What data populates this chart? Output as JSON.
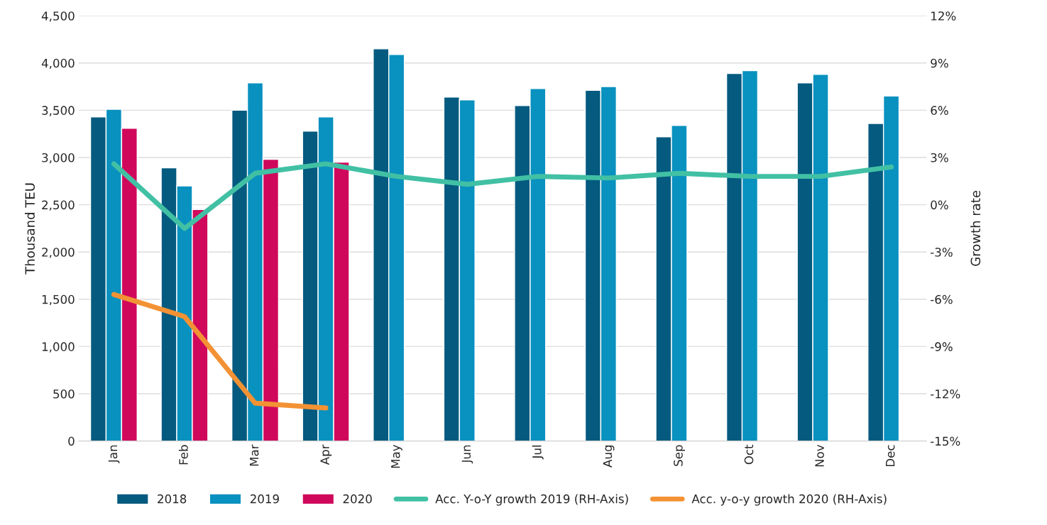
{
  "chart_data": {
    "type": "bar",
    "categories": [
      "Jan",
      "Feb",
      "Mar",
      "Apr",
      "May",
      "Jun",
      "Jul",
      "Aug",
      "Sep",
      "Oct",
      "Nov",
      "Dec"
    ],
    "ylabel": "Thousand TEU",
    "y2label": "Growth rate",
    "ylim": [
      0,
      4500
    ],
    "yticks": [
      0,
      {
        "value": 500,
        "label": "500"
      },
      {
        "value": 1000,
        "label": "1,000"
      },
      {
        "value": 1500,
        "label": "1,500"
      },
      {
        "value": 2000,
        "label": "2,000"
      },
      {
        "value": 2500,
        "label": "2,500"
      },
      {
        "value": 3000,
        "label": "3,000"
      },
      {
        "value": 3500,
        "label": "3,500"
      },
      {
        "value": 4000,
        "label": "4,000"
      },
      {
        "value": 4500,
        "label": "4,500"
      }
    ],
    "y2lim": [
      -15,
      12
    ],
    "y2ticks": [
      {
        "value": -15,
        "label": "-15%"
      },
      {
        "value": -12,
        "label": "-12%"
      },
      {
        "value": -9,
        "label": "-9%"
      },
      {
        "value": -6,
        "label": "-6%"
      },
      {
        "value": -3,
        "label": "-3%"
      },
      {
        "value": 0,
        "label": "0%"
      },
      {
        "value": 3,
        "label": "3%"
      },
      {
        "value": 6,
        "label": "6%"
      },
      {
        "value": 9,
        "label": "9%"
      },
      {
        "value": 12,
        "label": "12%"
      }
    ],
    "grid": "y",
    "legend": "bottom",
    "series": [
      {
        "name": "2018",
        "color": "#045a7f",
        "values": [
          3430,
          2890,
          3500,
          3280,
          4150,
          3640,
          3550,
          3710,
          3220,
          3890,
          3790,
          3360
        ]
      },
      {
        "name": "2019",
        "color": "#0991bf",
        "values": [
          3510,
          2700,
          3790,
          3430,
          4090,
          3610,
          3730,
          3750,
          3340,
          3920,
          3880,
          3650
        ]
      },
      {
        "name": "2020",
        "color": "#d0085c",
        "values": [
          3310,
          2450,
          2980,
          2950,
          null,
          null,
          null,
          null,
          null,
          null,
          null,
          null
        ]
      },
      {
        "name": "Acc. Y-o-Y growth 2019 (RH-Axis)",
        "type": "line",
        "axis": "y2",
        "color": "#41c0a4",
        "values": [
          2.6,
          -1.5,
          2.0,
          2.6,
          1.8,
          1.3,
          1.8,
          1.7,
          2.0,
          1.8,
          1.8,
          2.4
        ]
      },
      {
        "name": "Acc. y-o-y growth 2020 (RH-Axis)",
        "type": "line",
        "axis": "y2",
        "color": "#f39234",
        "values": [
          -5.7,
          -7.1,
          -12.6,
          -12.9,
          null,
          null,
          null,
          null,
          null,
          null,
          null,
          null
        ]
      }
    ]
  }
}
